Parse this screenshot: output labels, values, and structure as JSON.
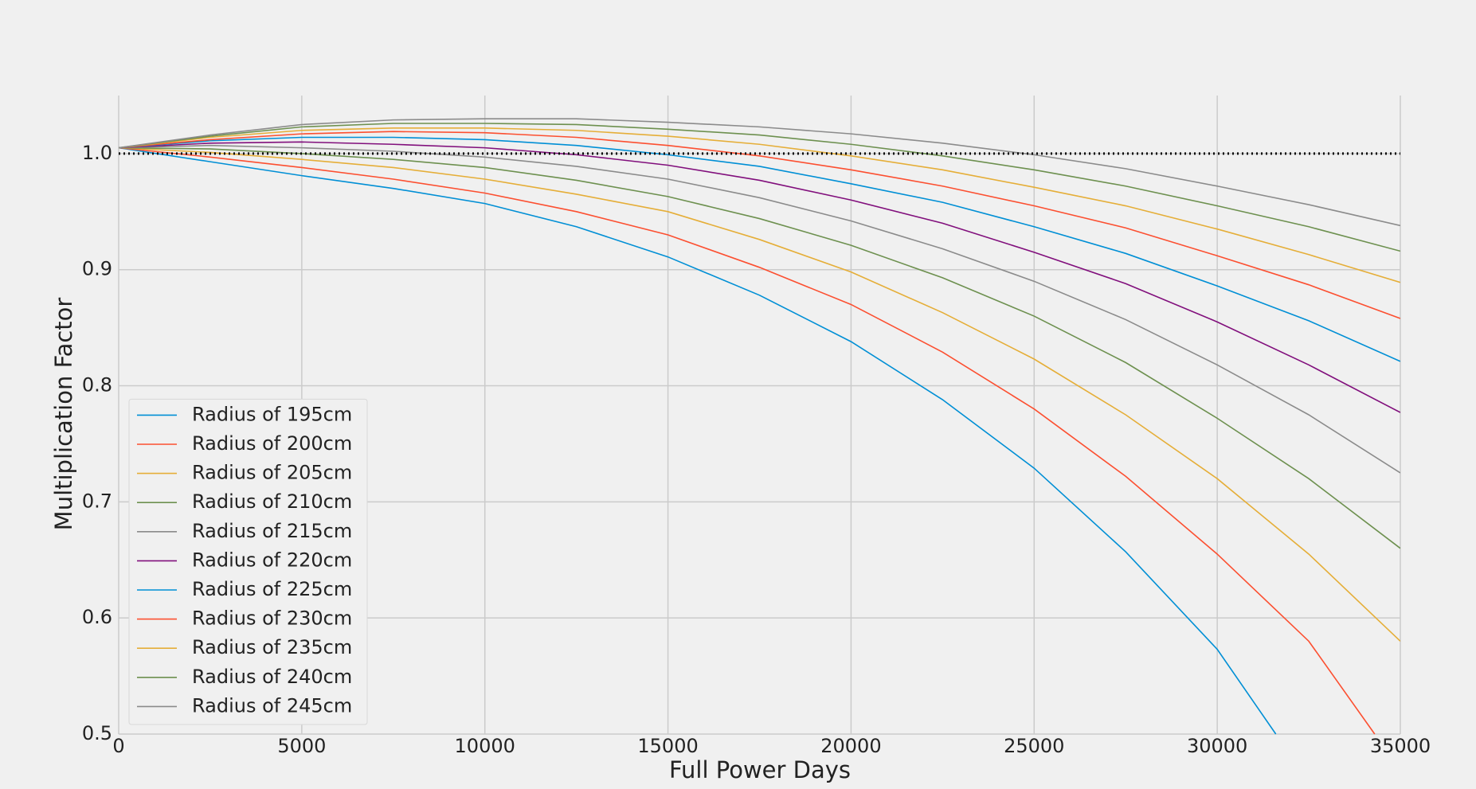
{
  "chart_data": {
    "type": "line",
    "xlabel": "Full Power Days",
    "ylabel": "Multiplication Factor",
    "x": [
      0,
      2500,
      5000,
      7500,
      10000,
      12500,
      15000,
      17500,
      20000,
      22500,
      25000,
      27500,
      30000,
      32500,
      35000
    ],
    "xlim": [
      0,
      35000
    ],
    "ylim": [
      0.5,
      1.05
    ],
    "xticks": [
      0,
      5000,
      10000,
      15000,
      20000,
      25000,
      30000,
      35000
    ],
    "yticks": [
      0.5,
      0.6,
      0.7,
      0.8,
      0.9,
      {
        "value": 1,
        "label": "1.0"
      }
    ],
    "grid": true,
    "legend": "lower left",
    "hline": {
      "value": 1,
      "color": "#000000"
    },
    "series": [
      {
        "name": "Radius of 195cm",
        "color": "#008fd5",
        "x": [
          0,
          2500,
          5000,
          7500,
          10000,
          12500,
          15000,
          17500,
          20000,
          22500,
          25000,
          27500,
          30000,
          31600
        ],
        "values": [
          1.005,
          0.993,
          0.981,
          0.97,
          0.957,
          0.937,
          0.911,
          0.878,
          0.838,
          0.788,
          0.729,
          0.657,
          0.573,
          0.5
        ]
      },
      {
        "name": "Radius of 200cm",
        "color": "#fc4f30",
        "x": [
          0,
          2500,
          5000,
          7500,
          10000,
          12500,
          15000,
          17500,
          20000,
          22500,
          25000,
          27500,
          30000,
          32500,
          34300
        ],
        "values": [
          1.005,
          0.997,
          0.988,
          0.978,
          0.966,
          0.95,
          0.93,
          0.902,
          0.87,
          0.829,
          0.78,
          0.722,
          0.655,
          0.58,
          0.5
        ]
      },
      {
        "name": "Radius of 205cm",
        "color": "#e5ae38",
        "values": [
          1.005,
          1.001,
          0.995,
          0.988,
          0.978,
          0.965,
          0.95,
          0.926,
          0.898,
          0.863,
          0.823,
          0.775,
          0.72,
          0.655,
          0.58
        ]
      },
      {
        "name": "Radius of 210cm",
        "color": "#6d904f",
        "values": [
          1.005,
          1.004,
          1.0,
          0.995,
          0.988,
          0.977,
          0.963,
          0.944,
          0.921,
          0.893,
          0.86,
          0.82,
          0.772,
          0.72,
          0.66
        ]
      },
      {
        "name": "Radius of 215cm",
        "color": "#8b8b8b",
        "values": [
          1.005,
          1.007,
          1.005,
          1.002,
          0.997,
          0.989,
          0.978,
          0.962,
          0.942,
          0.918,
          0.89,
          0.857,
          0.818,
          0.775,
          0.725
        ]
      },
      {
        "name": "Radius of 220cm",
        "color": "#810f7c",
        "values": [
          1.005,
          1.009,
          1.01,
          1.008,
          1.005,
          0.999,
          0.99,
          0.977,
          0.96,
          0.94,
          0.915,
          0.888,
          0.855,
          0.818,
          0.777
        ]
      },
      {
        "name": "Radius of 225cm",
        "color": "#008fd5",
        "values": [
          1.005,
          1.011,
          1.014,
          1.014,
          1.012,
          1.007,
          0.999,
          0.989,
          0.974,
          0.958,
          0.937,
          0.914,
          0.886,
          0.856,
          0.821
        ]
      },
      {
        "name": "Radius of 230cm",
        "color": "#fc4f30",
        "values": [
          1.005,
          1.012,
          1.017,
          1.019,
          1.018,
          1.014,
          1.007,
          0.998,
          0.986,
          0.972,
          0.955,
          0.936,
          0.912,
          0.887,
          0.858
        ]
      },
      {
        "name": "Radius of 235cm",
        "color": "#e5ae38",
        "values": [
          1.005,
          1.014,
          1.02,
          1.022,
          1.022,
          1.02,
          1.015,
          1.008,
          0.998,
          0.986,
          0.971,
          0.955,
          0.935,
          0.913,
          0.889
        ]
      },
      {
        "name": "Radius of 240cm",
        "color": "#6d904f",
        "values": [
          1.005,
          1.015,
          1.023,
          1.026,
          1.026,
          1.025,
          1.021,
          1.016,
          1.008,
          0.998,
          0.986,
          0.972,
          0.955,
          0.937,
          0.916
        ]
      },
      {
        "name": "Radius of 245cm",
        "color": "#8b8b8b",
        "values": [
          1.005,
          1.016,
          1.025,
          1.029,
          1.03,
          1.03,
          1.027,
          1.023,
          1.017,
          1.009,
          0.999,
          0.987,
          0.972,
          0.956,
          0.938
        ]
      }
    ]
  }
}
